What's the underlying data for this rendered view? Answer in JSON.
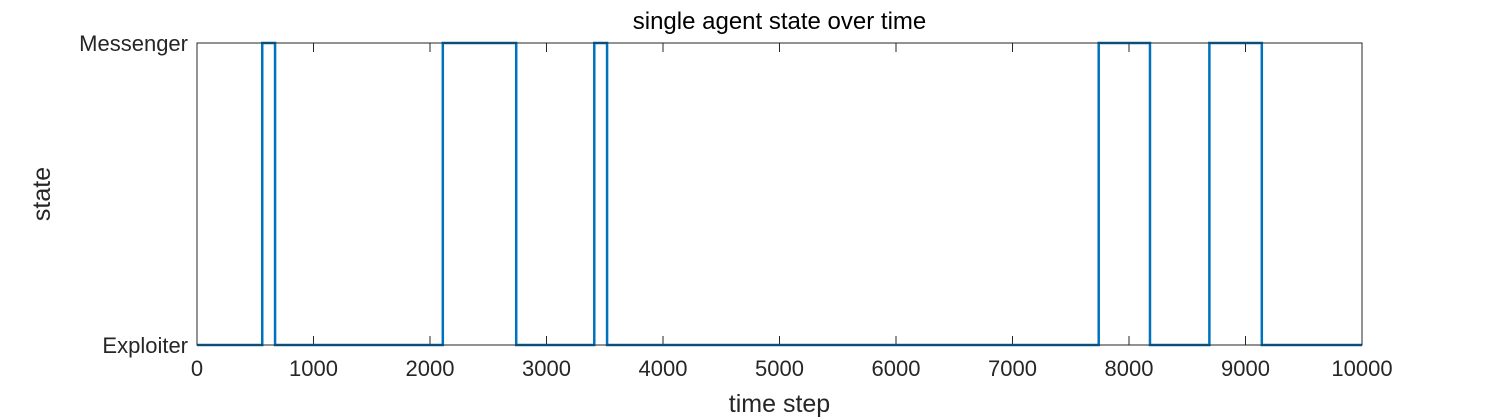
{
  "chart_data": {
    "type": "line",
    "title": "single agent state over time",
    "xlabel": "time step",
    "ylabel": "state",
    "xlim": [
      0,
      10000
    ],
    "x_ticks": [
      0,
      1000,
      2000,
      3000,
      4000,
      5000,
      6000,
      7000,
      8000,
      9000,
      10000
    ],
    "x_tick_labels": [
      "0",
      "1000",
      "2000",
      "3000",
      "4000",
      "5000",
      "6000",
      "7000",
      "8000",
      "9000",
      "10000"
    ],
    "y_categories": [
      "Exploiter",
      "Messenger"
    ],
    "grid": false,
    "legend": "none",
    "series": [
      {
        "color": "#0072BD",
        "step": true,
        "x": [
          0,
          560,
          670,
          2110,
          2740,
          3410,
          3520,
          7740,
          8180,
          8690,
          9140,
          10000
        ],
        "state": [
          "Exploiter",
          "Messenger",
          "Exploiter",
          "Messenger",
          "Exploiter",
          "Messenger",
          "Exploiter",
          "Messenger",
          "Exploiter",
          "Messenger",
          "Exploiter",
          "Exploiter"
        ]
      }
    ]
  }
}
